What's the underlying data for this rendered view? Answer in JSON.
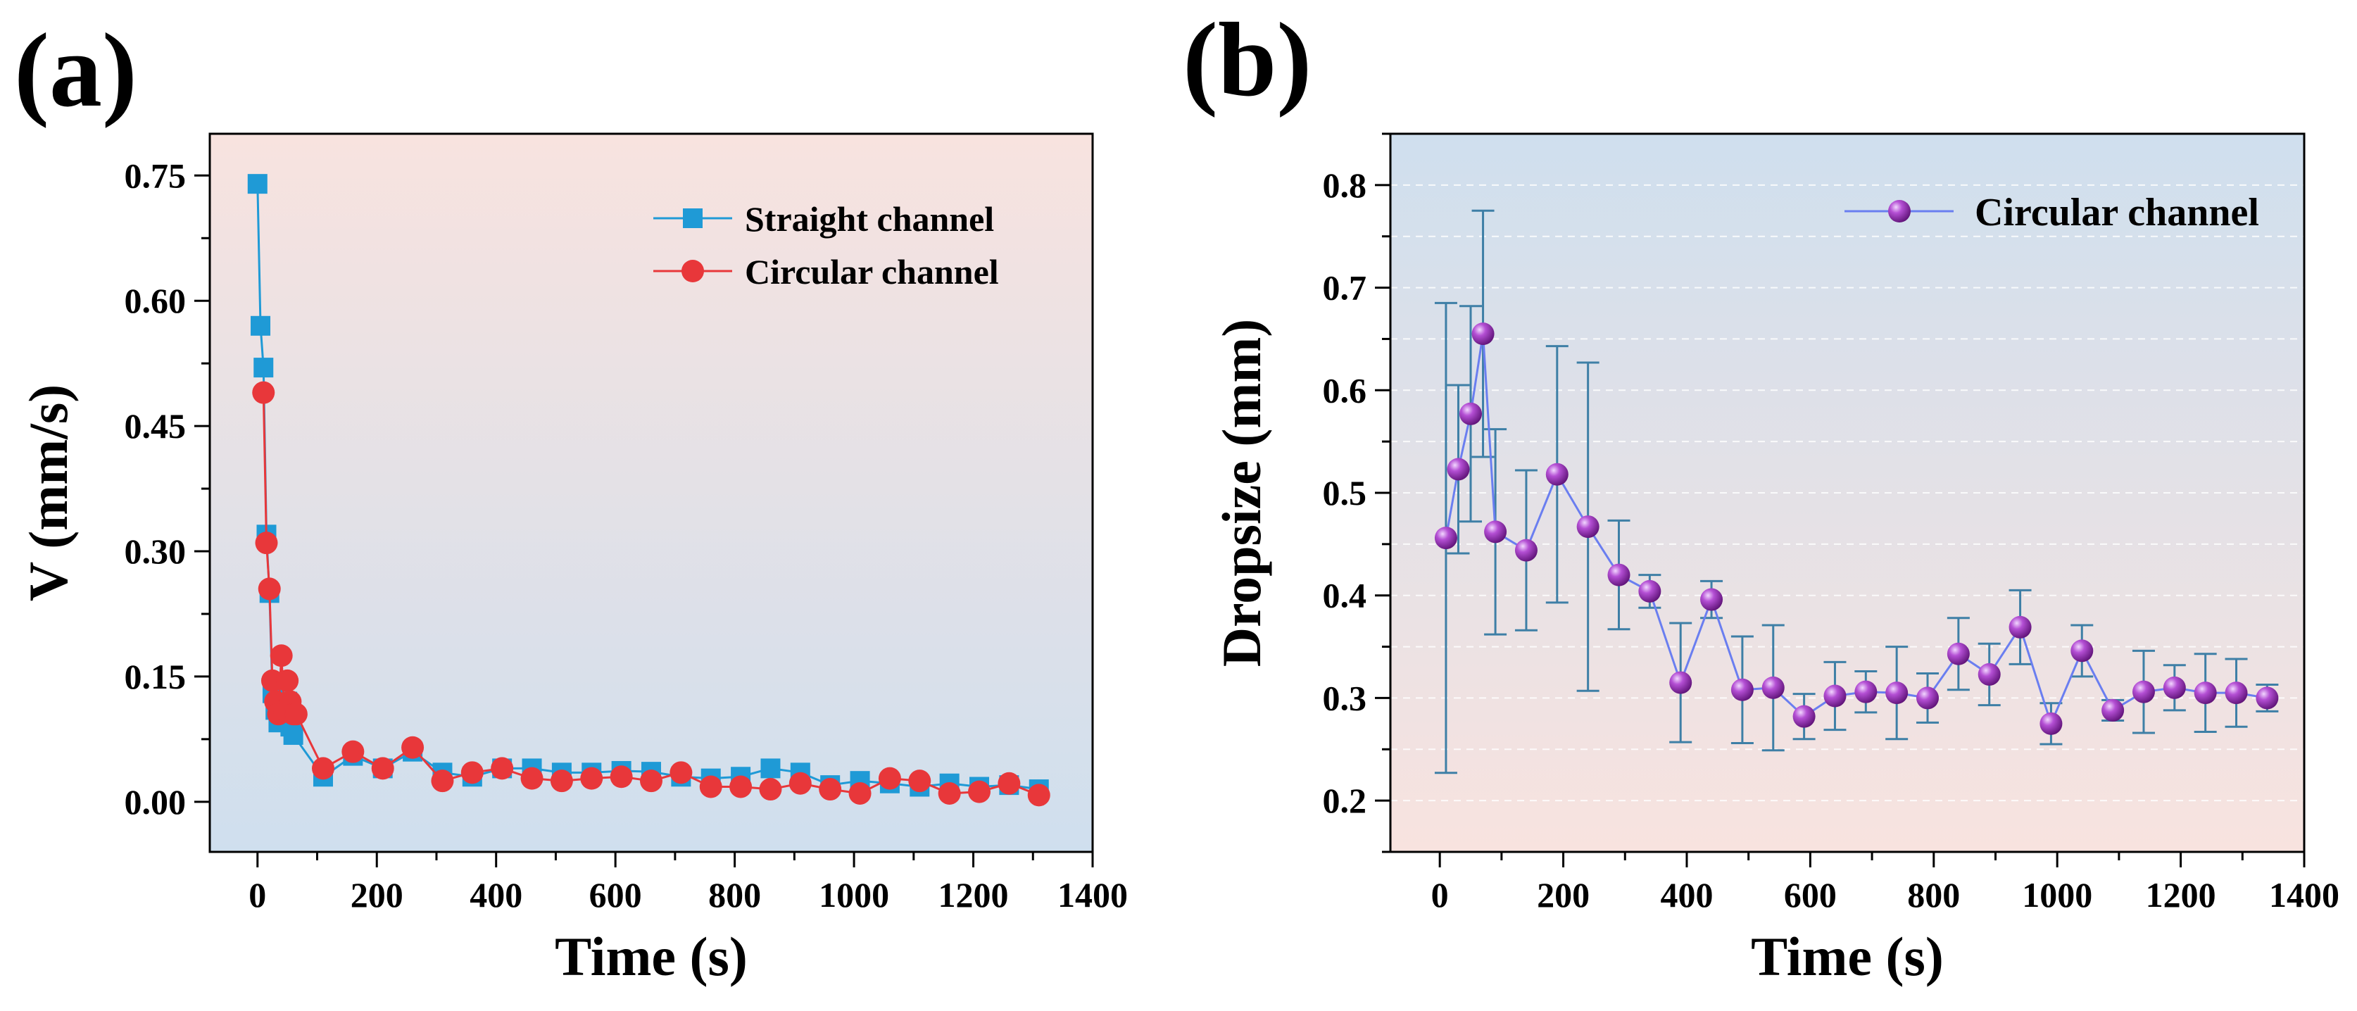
{
  "chart_data": [
    {
      "type": "line",
      "panel_label": "(a)",
      "xlabel": "Time (s)",
      "ylabel": "V (mm/s)",
      "xlim": [
        -80,
        1400
      ],
      "ylim": [
        -0.06,
        0.8
      ],
      "xticks": [
        0,
        200,
        400,
        600,
        800,
        1000,
        1200,
        1400
      ],
      "xtick_labels": [
        "0",
        "200",
        "400",
        "600",
        "800",
        "1000",
        "1200",
        "1400"
      ],
      "yticks": [
        0,
        0.15,
        0.3,
        0.45,
        0.6,
        0.75
      ],
      "ytick_labels": [
        "0.00",
        "0.15",
        "0.30",
        "0.45",
        "0.60",
        "0.75"
      ],
      "background_gradient": [
        "#f8e3df",
        "#cfdfee"
      ],
      "legend_position": "top-right",
      "series": [
        {
          "name": "Straight channel",
          "color": "#1f9ad6",
          "marker": "square",
          "x": [
            0,
            5,
            10,
            15,
            20,
            25,
            30,
            35,
            40,
            45,
            50,
            55,
            60,
            110,
            160,
            210,
            260,
            310,
            360,
            410,
            460,
            510,
            560,
            610,
            660,
            710,
            760,
            810,
            860,
            910,
            960,
            1010,
            1060,
            1110,
            1160,
            1210,
            1260,
            1310
          ],
          "y": [
            0.74,
            0.57,
            0.52,
            0.32,
            0.25,
            0.13,
            0.11,
            0.095,
            0.12,
            0.1,
            0.12,
            0.09,
            0.08,
            0.03,
            0.055,
            0.04,
            0.06,
            0.035,
            0.03,
            0.04,
            0.04,
            0.035,
            0.035,
            0.037,
            0.036,
            0.03,
            0.028,
            0.03,
            0.04,
            0.035,
            0.02,
            0.025,
            0.022,
            0.018,
            0.022,
            0.018,
            0.02,
            0.015
          ]
        },
        {
          "name": "Circular channel",
          "color": "#e8373a",
          "marker": "circle",
          "x": [
            10,
            15,
            20,
            25,
            30,
            35,
            40,
            45,
            50,
            55,
            60,
            65,
            110,
            160,
            210,
            260,
            310,
            360,
            410,
            460,
            510,
            560,
            610,
            660,
            710,
            760,
            810,
            860,
            910,
            960,
            1010,
            1060,
            1110,
            1160,
            1210,
            1260,
            1310
          ],
          "y": [
            0.49,
            0.31,
            0.255,
            0.145,
            0.12,
            0.105,
            0.175,
            0.11,
            0.145,
            0.12,
            0.105,
            0.105,
            0.04,
            0.06,
            0.04,
            0.065,
            0.025,
            0.035,
            0.04,
            0.028,
            0.025,
            0.028,
            0.03,
            0.025,
            0.035,
            0.018,
            0.018,
            0.015,
            0.022,
            0.015,
            0.01,
            0.028,
            0.025,
            0.01,
            0.012,
            0.022,
            0.008
          ]
        }
      ]
    },
    {
      "type": "line",
      "panel_label": "(b)",
      "xlabel": "Time (s)",
      "ylabel": "Dropsize (mm)",
      "xlim": [
        -80,
        1400
      ],
      "ylim": [
        0.15,
        0.85
      ],
      "xticks": [
        0,
        200,
        400,
        600,
        800,
        1000,
        1200,
        1400
      ],
      "xtick_labels": [
        "0",
        "200",
        "400",
        "600",
        "800",
        "1000",
        "1200",
        "1400"
      ],
      "yticks": [
        0.2,
        0.3,
        0.4,
        0.5,
        0.6,
        0.7,
        0.8
      ],
      "ytick_labels": [
        "0.2",
        "0.3",
        "0.4",
        "0.5",
        "0.6",
        "0.7",
        "0.8"
      ],
      "grid": true,
      "background_gradient": [
        "#cfdfee",
        "#f8e3df"
      ],
      "legend_position": "top-right",
      "series": [
        {
          "name": "Circular channel",
          "color": "#6a7ef0",
          "marker_color": "#9b30b8",
          "error_bar_color": "#3e7fa6",
          "marker": "sphere",
          "x": [
            10,
            30,
            50,
            70,
            90,
            140,
            190,
            240,
            290,
            340,
            390,
            440,
            490,
            540,
            590,
            640,
            690,
            740,
            790,
            840,
            890,
            940,
            990,
            1040,
            1090,
            1140,
            1190,
            1240,
            1290,
            1340
          ],
          "y": [
            0.456,
            0.523,
            0.577,
            0.655,
            0.462,
            0.444,
            0.518,
            0.467,
            0.42,
            0.404,
            0.315,
            0.396,
            0.308,
            0.31,
            0.282,
            0.302,
            0.306,
            0.305,
            0.3,
            0.343,
            0.323,
            0.369,
            0.275,
            0.346,
            0.288,
            0.306,
            0.31,
            0.305,
            0.305,
            0.3
          ],
          "error": [
            0.229,
            0.082,
            0.105,
            0.12,
            0.1,
            0.078,
            0.125,
            0.16,
            0.053,
            0.016,
            0.058,
            0.018,
            0.052,
            0.061,
            0.022,
            0.033,
            0.02,
            0.045,
            0.024,
            0.035,
            0.03,
            0.036,
            0.02,
            0.025,
            0.01,
            0.04,
            0.022,
            0.038,
            0.033,
            0.013
          ]
        }
      ]
    }
  ]
}
